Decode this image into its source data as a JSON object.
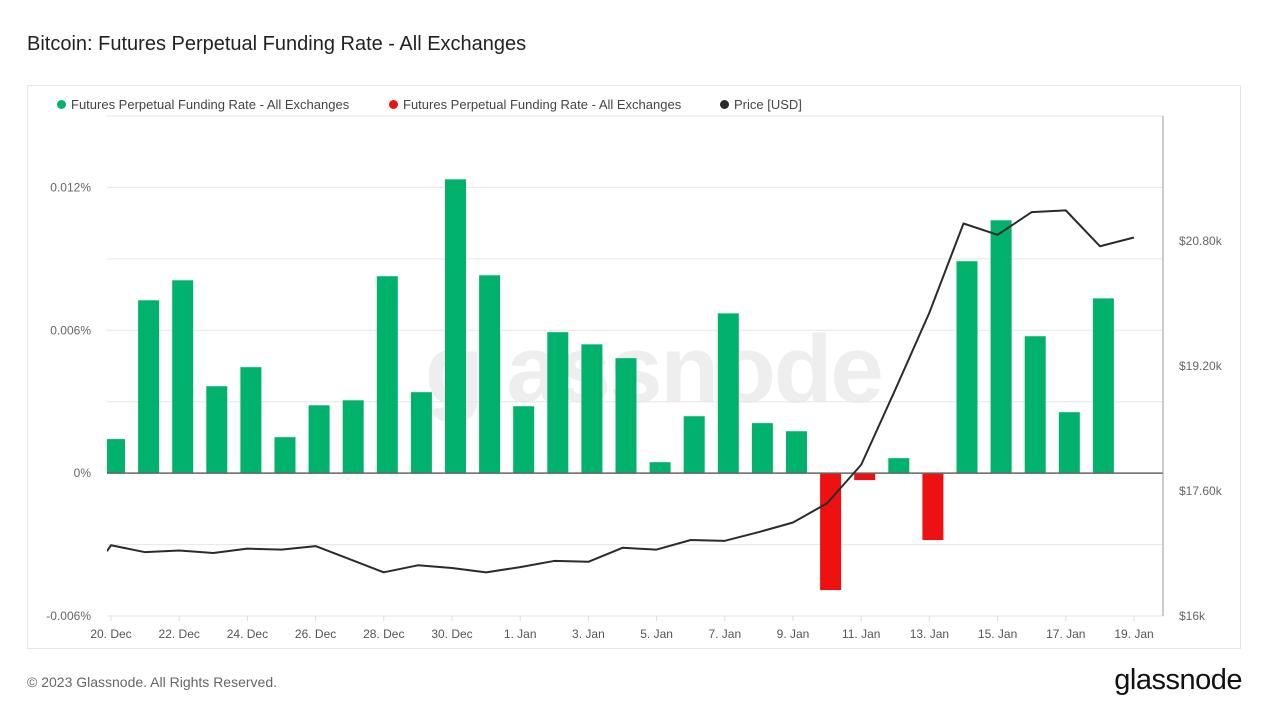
{
  "title": "Bitcoin: Futures Perpetual Funding Rate - All Exchanges",
  "legend": [
    {
      "label": "Futures Perpetual Funding Rate - All Exchanges",
      "color": "#00b26b"
    },
    {
      "label": "Futures Perpetual Funding Rate - All Exchanges",
      "color": "#ee1111"
    },
    {
      "label": "Price [USD]",
      "color": "#2b2b2b"
    }
  ],
  "watermark": "glassnode",
  "footer": "© 2023 Glassnode. All Rights Reserved.",
  "logo": "glassnode",
  "chart_data": {
    "type": "bar",
    "title": "Bitcoin: Futures Perpetual Funding Rate - All Exchanges",
    "x_tick_labels": [
      "20. Dec",
      "22. Dec",
      "24. Dec",
      "26. Dec",
      "28. Dec",
      "30. Dec",
      "1. Jan",
      "3. Jan",
      "5. Jan",
      "7. Jan",
      "9. Jan",
      "11. Jan",
      "13. Jan",
      "15. Jan",
      "17. Jan",
      "19. Jan"
    ],
    "dates": [
      "20 Dec",
      "21 Dec",
      "22 Dec",
      "23 Dec",
      "24 Dec",
      "25 Dec",
      "26 Dec",
      "27 Dec",
      "28 Dec",
      "29 Dec",
      "30 Dec",
      "31 Dec",
      "1 Jan",
      "2 Jan",
      "3 Jan",
      "4 Jan",
      "5 Jan",
      "6 Jan",
      "7 Jan",
      "8 Jan",
      "9 Jan",
      "10 Jan",
      "11 Jan",
      "12 Jan",
      "13 Jan",
      "14 Jan",
      "15 Jan",
      "16 Jan",
      "17 Jan",
      "18 Jan",
      "19 Jan"
    ],
    "left_axis": {
      "ticks": [
        "-0.006%",
        "0%",
        "0.006%",
        "0.012%"
      ],
      "tick_values": [
        -0.006,
        0,
        0.006,
        0.012
      ],
      "range": [
        -0.006,
        0.015
      ],
      "unit": "%"
    },
    "right_axis": {
      "ticks": [
        "$16k",
        "$17.60k",
        "$19.20k",
        "$20.80k"
      ],
      "tick_values": [
        16000,
        17600,
        19200,
        20800
      ],
      "range": [
        16000,
        22400
      ]
    },
    "grid": true,
    "legend_position": "top-left",
    "series": [
      {
        "name": "Futures Perpetual Funding Rate - All Exchanges",
        "type": "bar",
        "axis": "left",
        "positive_color": "#00b26b",
        "negative_color": "#ee1111",
        "values": [
          0.00143,
          0.00726,
          0.0081,
          0.00365,
          0.00445,
          0.00151,
          0.00285,
          0.00306,
          0.00827,
          0.0034,
          0.01234,
          0.00831,
          0.00281,
          0.00592,
          0.00541,
          0.00483,
          0.00046,
          0.00239,
          0.00671,
          0.0021,
          0.00176,
          -0.00491,
          -0.00029,
          0.00063,
          -0.00281,
          0.0089,
          0.01062,
          0.00575,
          0.00256,
          0.00734,
          null
        ]
      },
      {
        "name": "Price [USD]",
        "type": "line",
        "axis": "right",
        "color": "#2b2b2b",
        "values": [
          16906,
          16817,
          16839,
          16806,
          16862,
          16850,
          16895,
          16727,
          16559,
          16649,
          16615,
          16559,
          16626,
          16705,
          16694,
          16873,
          16850,
          16973,
          16962,
          17074,
          17197,
          17443,
          17936,
          18898,
          19883,
          21024,
          20879,
          21170,
          21192,
          20733,
          20845
        ]
      }
    ]
  }
}
